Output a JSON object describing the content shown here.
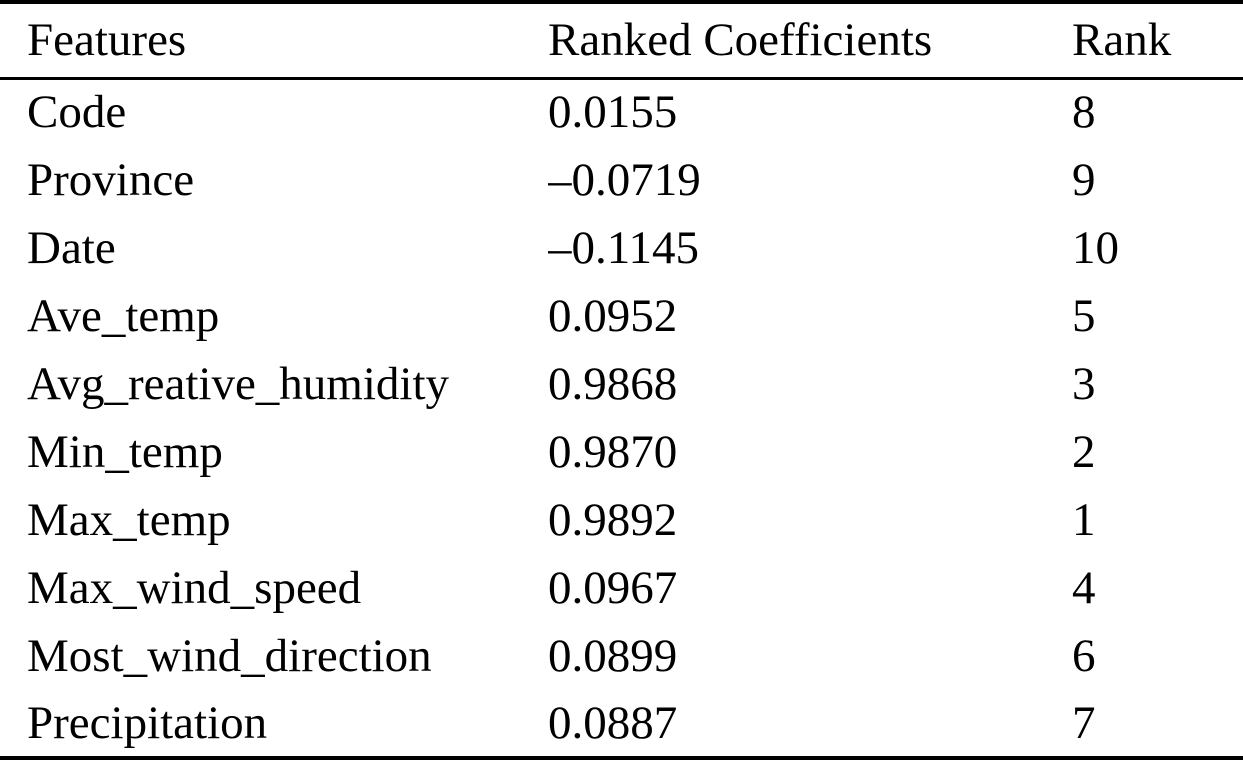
{
  "table": {
    "columns": [
      "Features",
      "Ranked Coefficients",
      "Rank"
    ],
    "rows": [
      {
        "feature": "Code",
        "coefficient": "0.0155",
        "rank": "8"
      },
      {
        "feature": "Province",
        "coefficient": "–0.0719",
        "rank": "9"
      },
      {
        "feature": "Date",
        "coefficient": "–0.1145",
        "rank": "10"
      },
      {
        "feature": "Ave_temp",
        "coefficient": "0.0952",
        "rank": "5"
      },
      {
        "feature": "Avg_reative_humidity",
        "coefficient": "0.9868",
        "rank": "3"
      },
      {
        "feature": "Min_temp",
        "coefficient": "0.9870",
        "rank": "2"
      },
      {
        "feature": "Max_temp",
        "coefficient": "0.9892",
        "rank": "1"
      },
      {
        "feature": "Max_wind_speed",
        "coefficient": "0.0967",
        "rank": "4"
      },
      {
        "feature": "Most_wind_direction",
        "coefficient": "0.0899",
        "rank": "6"
      },
      {
        "feature": "Precipitation",
        "coefficient": "0.0887",
        "rank": "7"
      }
    ]
  },
  "style": {
    "text_color": "#000000",
    "background_color": "#ffffff",
    "rule_color": "#000000"
  },
  "chart_data": {
    "type": "table",
    "title": "",
    "columns": [
      "Features",
      "Ranked Coefficients",
      "Rank"
    ],
    "features": [
      "Code",
      "Province",
      "Date",
      "Ave_temp",
      "Avg_reative_humidity",
      "Min_temp",
      "Max_temp",
      "Max_wind_speed",
      "Most_wind_direction",
      "Precipitation"
    ],
    "ranked_coefficients": [
      0.0155,
      -0.0719,
      -0.1145,
      0.0952,
      0.9868,
      0.987,
      0.9892,
      0.0967,
      0.0899,
      0.0887
    ],
    "ranks": [
      8,
      9,
      10,
      5,
      3,
      2,
      1,
      4,
      6,
      7
    ]
  }
}
